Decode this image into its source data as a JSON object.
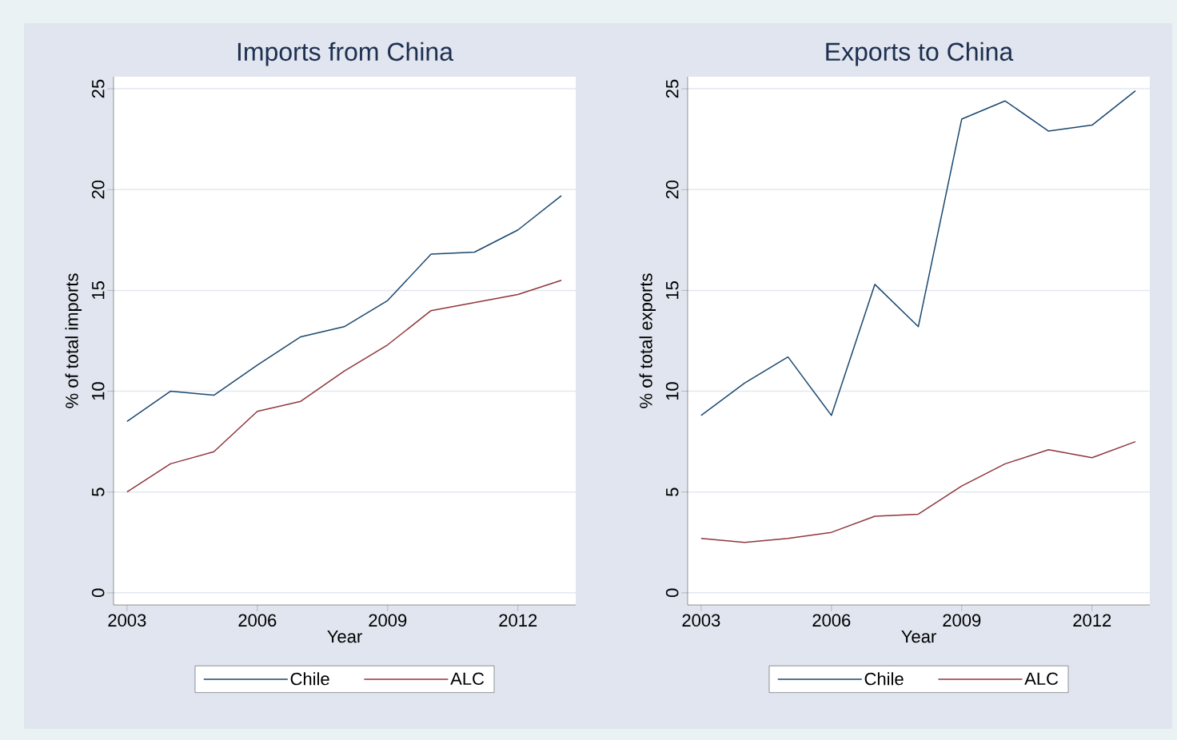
{
  "chart_data": [
    {
      "type": "line",
      "title": "Imports from China",
      "xlabel": "Year",
      "ylabel": "% of total imports",
      "x": [
        2003,
        2004,
        2005,
        2006,
        2007,
        2008,
        2009,
        2010,
        2011,
        2012,
        2013
      ],
      "series": [
        {
          "name": "Chile",
          "color": "#1a476f",
          "values": [
            8.5,
            10.0,
            9.8,
            11.3,
            12.7,
            13.2,
            14.5,
            16.8,
            16.9,
            18.0,
            19.7
          ]
        },
        {
          "name": "ALC",
          "color": "#90353b",
          "values": [
            5.0,
            6.4,
            7.0,
            9.0,
            9.5,
            11.0,
            12.3,
            14.0,
            14.4,
            14.8,
            15.5
          ]
        }
      ],
      "xlim": [
        2002.69,
        2013.33
      ],
      "ylim": [
        -0.6,
        25.6
      ],
      "xticks": [
        2003,
        2006,
        2009,
        2012
      ],
      "yticks": [
        0,
        5,
        10,
        15,
        20,
        25
      ],
      "grid": "y",
      "legend": "bottom"
    },
    {
      "type": "line",
      "title": "Exports to China",
      "xlabel": "Year",
      "ylabel": "% of total exports",
      "x": [
        2003,
        2004,
        2005,
        2006,
        2007,
        2008,
        2009,
        2010,
        2011,
        2012,
        2013
      ],
      "series": [
        {
          "name": "Chile",
          "color": "#1a476f",
          "values": [
            8.8,
            10.4,
            11.7,
            8.8,
            15.3,
            13.2,
            23.5,
            24.4,
            22.9,
            23.2,
            24.9
          ]
        },
        {
          "name": "ALC",
          "color": "#90353b",
          "values": [
            2.7,
            2.5,
            2.7,
            3.0,
            3.8,
            3.9,
            5.3,
            6.4,
            7.1,
            6.7,
            7.5
          ]
        }
      ],
      "xlim": [
        2002.69,
        2013.33
      ],
      "ylim": [
        -0.6,
        25.6
      ],
      "xticks": [
        2003,
        2006,
        2009,
        2012
      ],
      "yticks": [
        0,
        5,
        10,
        15,
        20,
        25
      ],
      "grid": "y",
      "legend": "bottom"
    }
  ]
}
